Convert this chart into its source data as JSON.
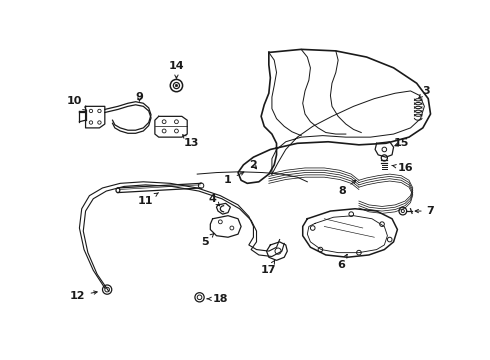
{
  "bg_color": "#ffffff",
  "line_color": "#1a1a1a",
  "lw": 0.9,
  "fs": 8.0,
  "figsize": [
    4.9,
    3.6
  ],
  "dpi": 100
}
